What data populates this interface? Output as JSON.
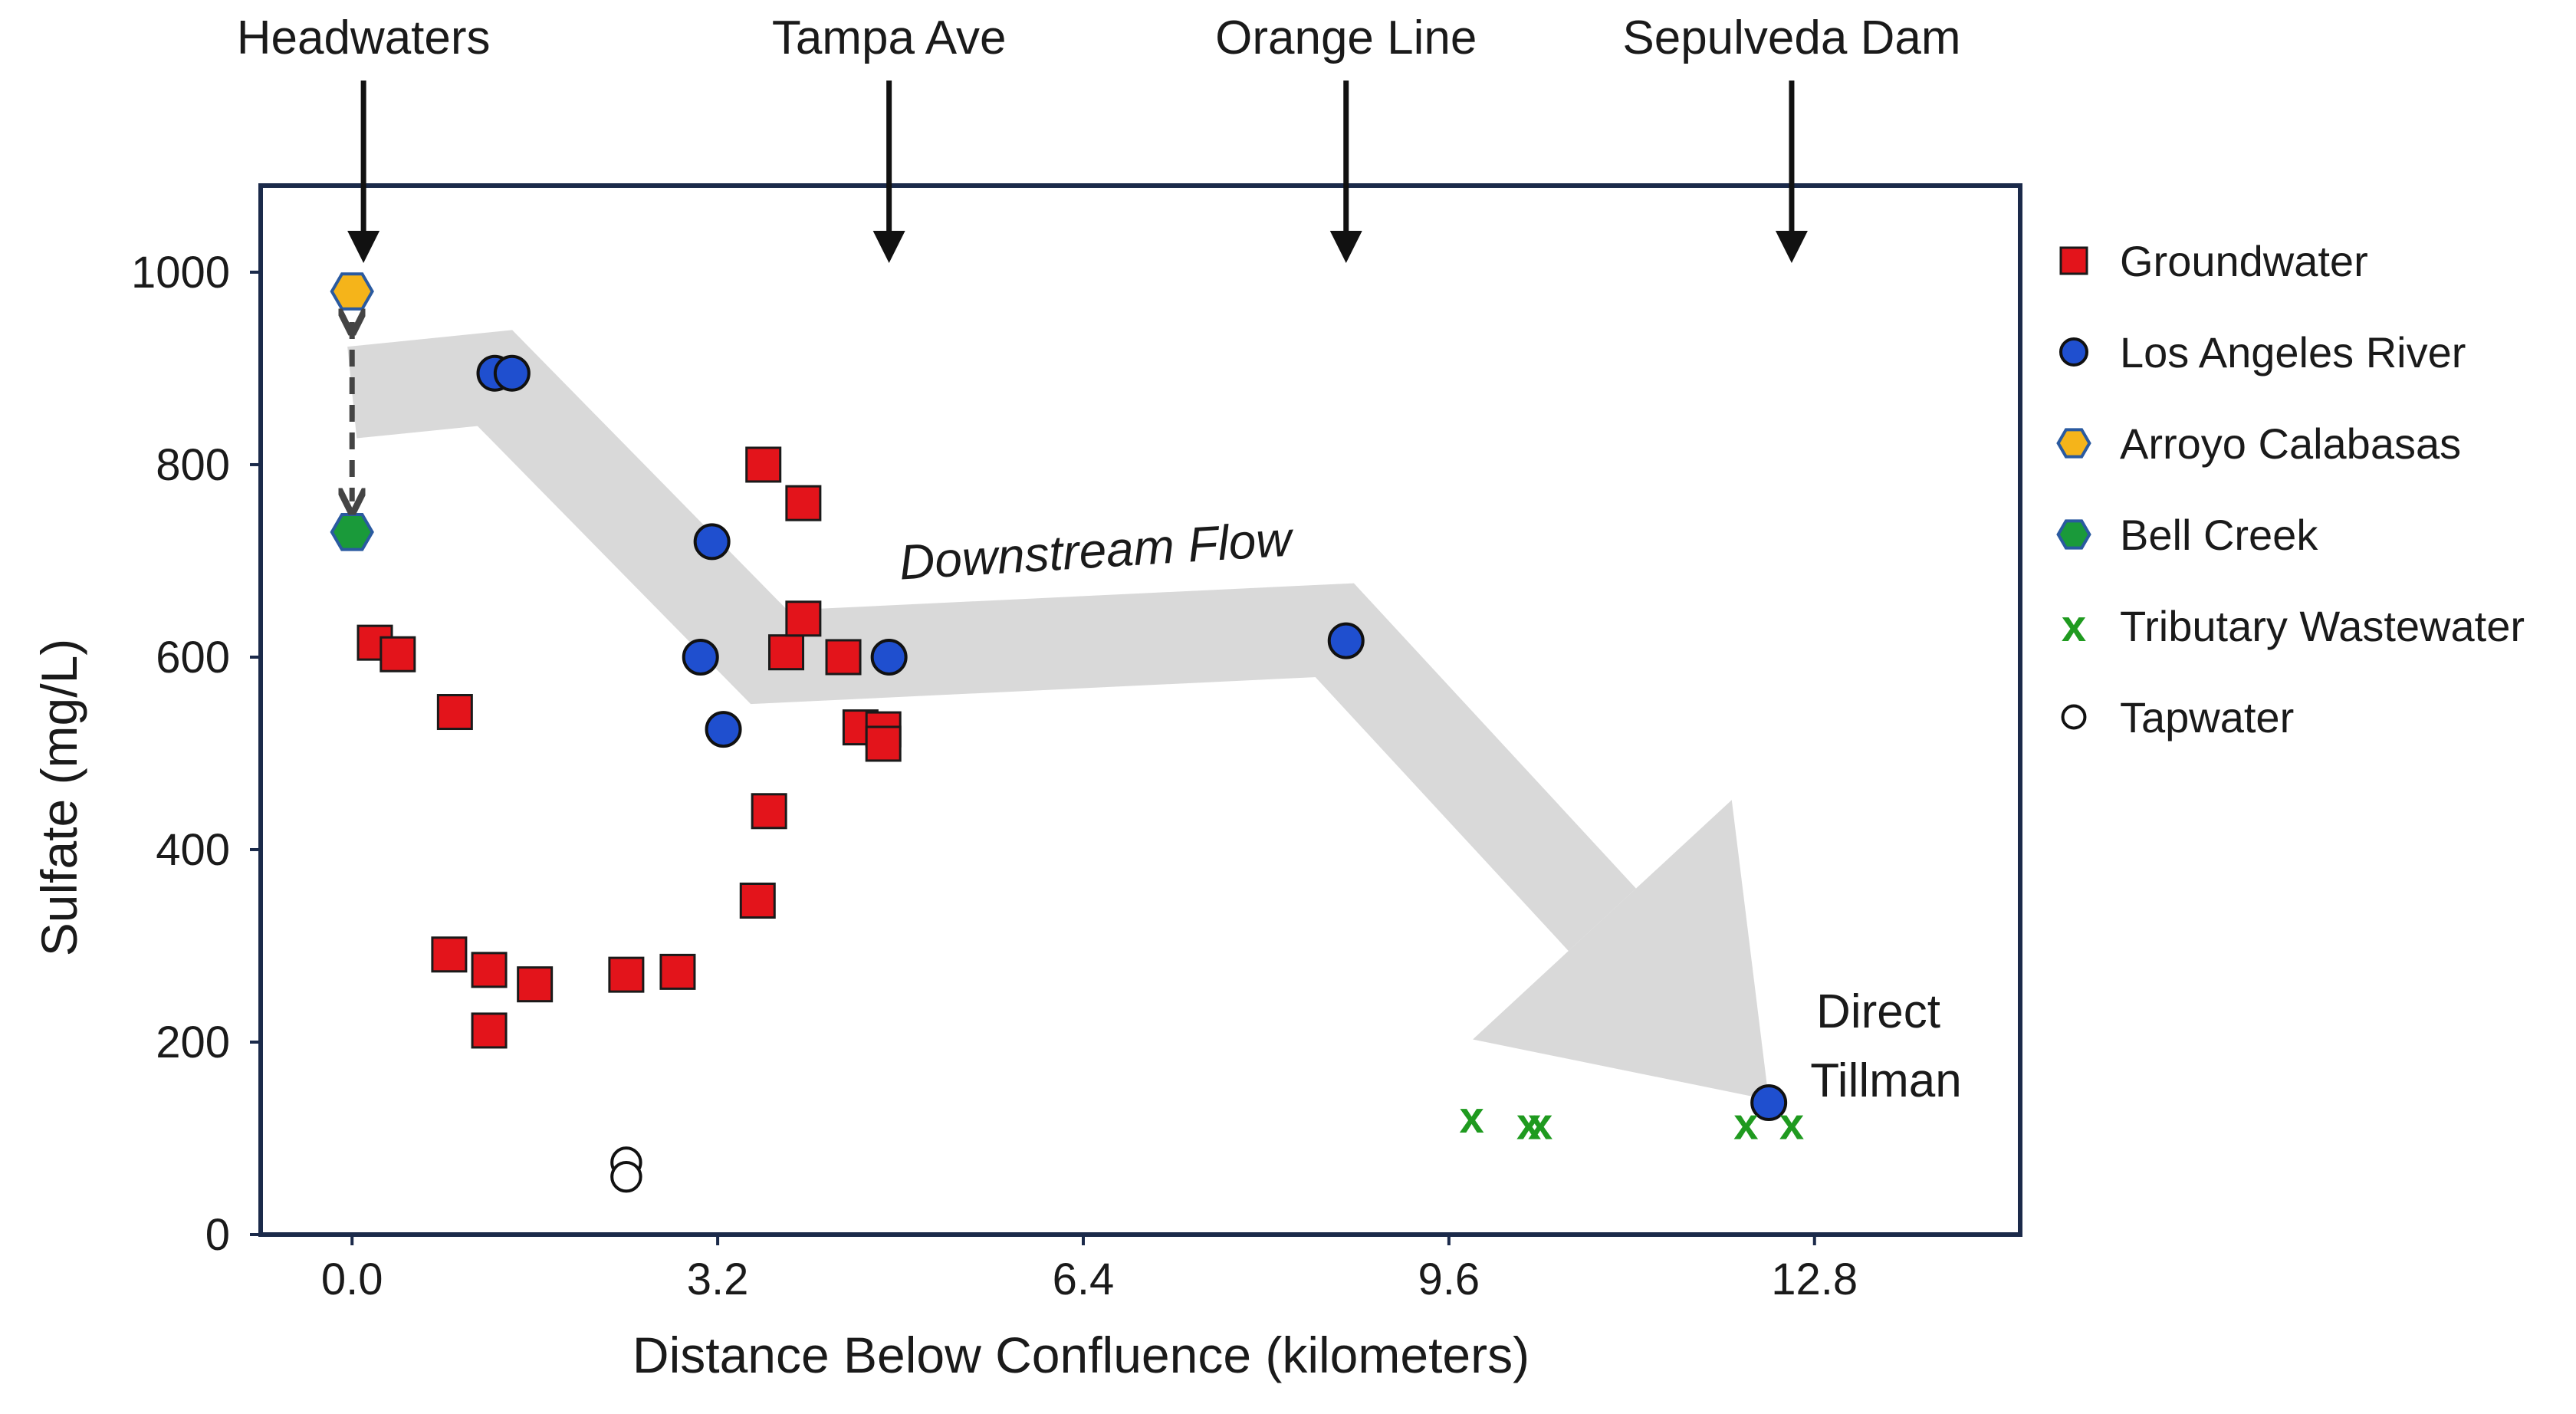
{
  "chart_data": {
    "type": "scatter",
    "xlabel": "Distance Below Confluence (kilometers)",
    "ylabel": "Sulfate (mg/L)",
    "xlim": [
      -0.8,
      14.6
    ],
    "ylim": [
      0,
      1090
    ],
    "x_ticks": [
      0.0,
      3.2,
      6.4,
      9.6,
      12.8
    ],
    "x_tick_labels": [
      "0.0",
      "3.2",
      "6.4",
      "9.6",
      "12.8"
    ],
    "y_ticks": [
      0,
      200,
      400,
      600,
      800,
      1000
    ],
    "y_tick_labels": [
      "0",
      "200",
      "400",
      "600",
      "800",
      "1000"
    ],
    "grid": false,
    "legend_position": "right",
    "series": [
      {
        "name": "Groundwater",
        "marker": "square",
        "color": "#e3141b",
        "points": [
          [
            0.2,
            615
          ],
          [
            0.4,
            603
          ],
          [
            0.9,
            543
          ],
          [
            0.85,
            291
          ],
          [
            1.2,
            275
          ],
          [
            1.2,
            212
          ],
          [
            1.6,
            260
          ],
          [
            2.4,
            270
          ],
          [
            2.85,
            273
          ],
          [
            3.55,
            347
          ],
          [
            3.6,
            800
          ],
          [
            3.65,
            440
          ],
          [
            3.8,
            605
          ],
          [
            3.95,
            760
          ],
          [
            3.95,
            640
          ],
          [
            4.3,
            600
          ],
          [
            4.45,
            527
          ],
          [
            4.65,
            525
          ],
          [
            4.65,
            510
          ]
        ]
      },
      {
        "name": "Los Angeles River",
        "marker": "circle",
        "color": "#1f4fcf",
        "points": [
          [
            1.25,
            895
          ],
          [
            1.4,
            895
          ],
          [
            3.15,
            720
          ],
          [
            3.05,
            600
          ],
          [
            3.25,
            525
          ],
          [
            4.7,
            600
          ],
          [
            8.7,
            617
          ],
          [
            12.4,
            137
          ]
        ]
      },
      {
        "name": "Arroyo Calabasas",
        "marker": "hexagon",
        "color": "#f5b41a",
        "points": [
          [
            0.0,
            980
          ]
        ]
      },
      {
        "name": "Bell Creek",
        "marker": "hexagon",
        "color": "#1a9a3a",
        "points": [
          [
            0.0,
            730
          ]
        ]
      },
      {
        "name": "Tributary Wastewater",
        "marker": "x",
        "color": "#1f9a1f",
        "points": [
          [
            9.8,
            122
          ],
          [
            10.3,
            115
          ],
          [
            10.4,
            115
          ],
          [
            12.2,
            115
          ],
          [
            12.6,
            115
          ]
        ]
      },
      {
        "name": "Tapwater",
        "marker": "open-circle",
        "color": "#111111",
        "points": [
          [
            2.4,
            75
          ],
          [
            2.4,
            60
          ]
        ]
      }
    ],
    "top_labels": [
      {
        "text": "Headwaters",
        "x": 0.1
      },
      {
        "text": "Tampa Ave",
        "x": 4.7
      },
      {
        "text": "Orange Line",
        "x": 8.7
      },
      {
        "text": "Sepulveda Dam",
        "x": 12.6
      }
    ],
    "annotations": {
      "flow_label": "Downstream Flow",
      "end_label_line1": "Direct",
      "end_label_line2": "Tillman"
    },
    "flow_band": {
      "color": "#d9d9d9",
      "centerline": [
        [
          0.0,
          875
        ],
        [
          1.25,
          890
        ],
        [
          3.65,
          600
        ],
        [
          8.6,
          628
        ],
        [
          12.4,
          140
        ]
      ]
    }
  },
  "colors": {
    "frame": "#1b2a4a",
    "arrow": "#111111",
    "double_arrow": "#444444"
  }
}
